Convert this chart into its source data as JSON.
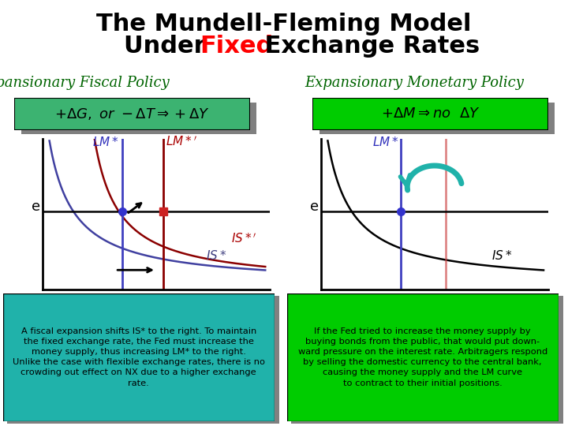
{
  "title_line1": "The Mundell-Fleming Model",
  "title_line2_parts": [
    [
      "Under ",
      "black"
    ],
    [
      "Fixed",
      "red"
    ],
    [
      " Exchange Rates",
      "black"
    ]
  ],
  "left_subtitle": "Expansionary Fiscal Policy",
  "right_subtitle": "Expansionary Monetary Policy",
  "left_box_color": "#3CB371",
  "right_box_color": "#00CC00",
  "note_bg_color_left": "#20B2AA",
  "note_bg_color_right": "#00CC00",
  "left_note": "A fiscal expansion shifts IS* to the right. To maintain\nthe fixed exchange rate, the Fed must increase the\nmoney supply, thus increasing LM* to the right.\nUnlike the case with flexible exchange rates, there is no\ncrowding out effect on NX due to a higher exchange\nrate.",
  "right_note": "If the Fed tried to increase the money supply by\nbuying bonds from the public, that would put down-\nward pressure on the interest rate. Arbitragers respond\nby selling the domestic currency to the central bank,\ncausing the money supply and the LM curve\nto contract to their initial positions.",
  "subtitle_color": "#006400",
  "title_fontsize": 22,
  "subtitle_fontsize": 13,
  "bg_color": "#FFFFFF",
  "shadow_color": "#808080"
}
